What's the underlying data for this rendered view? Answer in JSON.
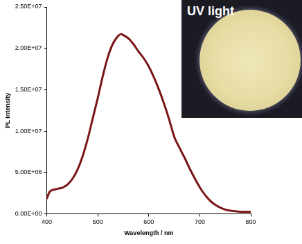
{
  "chart_data": {
    "type": "line",
    "x_label": "Wavelength / nm",
    "y_label": "PL intensity",
    "annotations": [
      "UV light"
    ],
    "x": [
      400,
      405,
      410,
      420,
      430,
      440,
      450,
      460,
      470,
      480,
      490,
      500,
      510,
      520,
      530,
      540,
      545,
      550,
      560,
      570,
      580,
      590,
      600,
      610,
      620,
      630,
      640,
      650,
      660,
      670,
      680,
      690,
      700,
      710,
      720,
      730,
      740,
      750,
      760,
      770,
      780,
      790,
      800
    ],
    "values": [
      1800000,
      2600000,
      2850000,
      3000000,
      3150000,
      3500000,
      4200000,
      5300000,
      6900000,
      9000000,
      11500000,
      14000000,
      16700000,
      19000000,
      20600000,
      21500000,
      21700000,
      21600000,
      21200000,
      20500000,
      19600000,
      18800000,
      17800000,
      16500000,
      15000000,
      13300000,
      11400000,
      9300000,
      8000000,
      6800000,
      5500000,
      4300000,
      3200000,
      2300000,
      1600000,
      1100000,
      750000,
      500000,
      380000,
      300000,
      250000,
      250000,
      250000
    ],
    "color": "#7a1518",
    "marker": "none",
    "line_style": "solid",
    "xlim": [
      400,
      800
    ],
    "ylim": [
      0,
      25000000
    ],
    "xticks": [
      400,
      500,
      600,
      700,
      800
    ],
    "yticks": [
      {
        "value": 0,
        "label": "0.00E+00"
      },
      {
        "value": 5000000,
        "label": "5.00E+06"
      },
      {
        "value": 10000000,
        "label": "1.00E+07"
      },
      {
        "value": 15000000,
        "label": "1.50E+07"
      },
      {
        "value": 20000000,
        "label": "2.00E+07"
      },
      {
        "value": 25000000,
        "label": "2.50E+07"
      }
    ],
    "grid": false,
    "legend": "none"
  }
}
